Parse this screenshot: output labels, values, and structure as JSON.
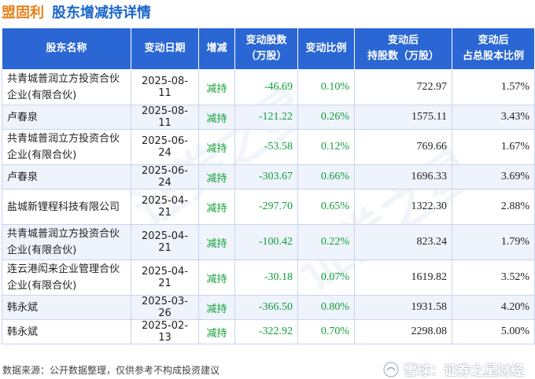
{
  "header": {
    "company": "盟固利",
    "title": "股东增减持详情"
  },
  "table": {
    "columns": [
      "股东名称",
      "变动日期",
      "增减",
      "变动股数\n（万股）",
      "变动比例",
      "变动后\n持股数（万股）",
      "变动后\n占总股本比例"
    ],
    "rows": [
      {
        "name": "共青城普润立方投资合伙企业(有限合伙)",
        "date": "2025-08-11",
        "dir": "减持",
        "shares": "-46.69",
        "ratio": "0.10%",
        "after": "722.97",
        "pct": "1.57%"
      },
      {
        "name": "卢春泉",
        "date": "2025-08-11",
        "dir": "减持",
        "shares": "-121.22",
        "ratio": "0.26%",
        "after": "1575.11",
        "pct": "3.43%"
      },
      {
        "name": "共青城普润立方投资合伙企业(有限合伙)",
        "date": "2025-06-24",
        "dir": "减持",
        "shares": "-53.58",
        "ratio": "0.12%",
        "after": "769.66",
        "pct": "1.67%"
      },
      {
        "name": "卢春泉",
        "date": "2025-06-24",
        "dir": "减持",
        "shares": "-303.67",
        "ratio": "0.66%",
        "after": "1696.33",
        "pct": "3.69%"
      },
      {
        "name": "盐城新锂程科技有限公司",
        "date": "2025-04-21",
        "dir": "减持",
        "shares": "-297.70",
        "ratio": "0.65%",
        "after": "1322.30",
        "pct": "2.88%"
      },
      {
        "name": "共青城普润立方投资合伙企业(有限合伙)",
        "date": "2025-04-21",
        "dir": "减持",
        "shares": "-100.42",
        "ratio": "0.22%",
        "after": "823.24",
        "pct": "1.79%"
      },
      {
        "name": "连云港闳来企业管理合伙企业(有限合伙)",
        "date": "2025-04-21",
        "dir": "减持",
        "shares": "-30.18",
        "ratio": "0.07%",
        "after": "1619.82",
        "pct": "3.52%"
      },
      {
        "name": "韩永斌",
        "date": "2025-03-26",
        "dir": "减持",
        "shares": "-366.50",
        "ratio": "0.80%",
        "after": "1931.58",
        "pct": "4.20%"
      },
      {
        "name": "韩永斌",
        "date": "2025-02-13",
        "dir": "减持",
        "shares": "-322.92",
        "ratio": "0.70%",
        "after": "2298.08",
        "pct": "5.00%"
      }
    ]
  },
  "footer": {
    "source": "数据来源：公开数据整理，仅供参考不构成投资建议",
    "brand": "雪球：证券之星财经"
  },
  "watermark": "证券之星",
  "colors": {
    "header_bg": "#2a66d4",
    "company": "#e8801a",
    "title": "#1a66cc",
    "decrease": "#12a03a",
    "alt_row": "#eef3fc"
  },
  "icons": {
    "brand": "snowball-icon"
  }
}
